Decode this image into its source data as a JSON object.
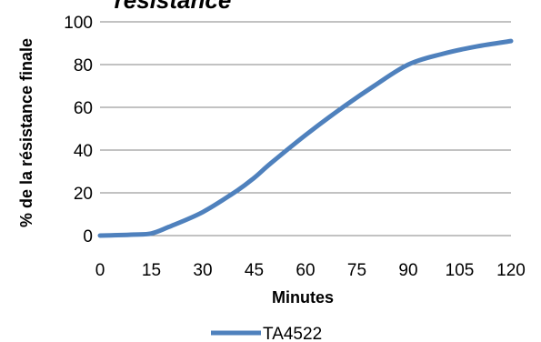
{
  "chart_data": {
    "type": "line",
    "title": "résistance",
    "xlabel": "Minutes",
    "ylabel": "% de la résistance finale",
    "x": [
      0,
      15,
      30,
      45,
      60,
      75,
      90,
      105,
      120
    ],
    "xlim": [
      0,
      120
    ],
    "ylim": [
      0,
      100
    ],
    "yticks": [
      0,
      20,
      40,
      60,
      80,
      100
    ],
    "xticks": [
      "0",
      "15",
      "30",
      "45",
      "60",
      "75",
      "90",
      "105",
      "120"
    ],
    "ytick_labels": [
      "0",
      "20",
      "40",
      "60",
      "80",
      "100"
    ],
    "grid": true,
    "legend_position": "bottom",
    "series": [
      {
        "name": "TA4522",
        "color": "#4F81BD",
        "x": [
          0,
          5,
          10,
          15,
          20,
          30,
          40,
          45,
          50,
          60,
          70,
          80,
          90,
          100,
          110,
          120
        ],
        "values": [
          0,
          0.2,
          0.5,
          1,
          4,
          11,
          21,
          27,
          34,
          47,
          59,
          70,
          80,
          85,
          88.5,
          91
        ]
      }
    ]
  }
}
